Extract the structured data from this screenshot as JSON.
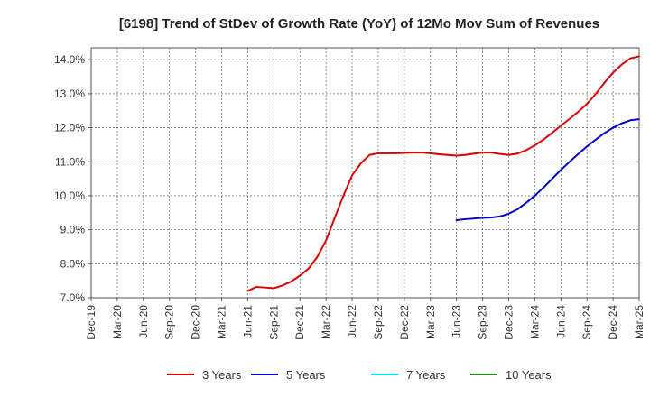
{
  "chart_data": {
    "type": "line",
    "title": "[6198]  Trend of StDev of Growth Rate (YoY) of 12Mo Mov Sum of Revenues",
    "xlabel": "",
    "ylabel": "",
    "ylim": [
      7.0,
      14.35
    ],
    "yticks": [
      "7.0%",
      "8.0%",
      "9.0%",
      "10.0%",
      "11.0%",
      "12.0%",
      "13.0%",
      "14.0%"
    ],
    "ytick_values": [
      7.0,
      8.0,
      9.0,
      10.0,
      11.0,
      12.0,
      13.0,
      14.0
    ],
    "xticks": [
      "Dec-19",
      "Mar-20",
      "Jun-20",
      "Sep-20",
      "Dec-20",
      "Mar-21",
      "Jun-21",
      "Sep-21",
      "Dec-21",
      "Mar-22",
      "Jun-22",
      "Sep-22",
      "Dec-22",
      "Mar-23",
      "Jun-23",
      "Sep-23",
      "Dec-23",
      "Mar-24",
      "Jun-24",
      "Sep-24",
      "Dec-24",
      "Mar-25"
    ],
    "grid": true,
    "legend_position": "bottom",
    "series": [
      {
        "name": "3 Years",
        "color": "#dd0000",
        "start_month_index": 18,
        "values": [
          7.2,
          7.32,
          7.3,
          7.28,
          7.36,
          7.48,
          7.65,
          7.86,
          8.2,
          8.68,
          9.35,
          10.0,
          10.6,
          10.95,
          11.2,
          11.25,
          11.25,
          11.25,
          11.26,
          11.27,
          11.27,
          11.25,
          11.22,
          11.2,
          11.18,
          11.2,
          11.24,
          11.27,
          11.27,
          11.23,
          11.2,
          11.24,
          11.34,
          11.48,
          11.65,
          11.85,
          12.06,
          12.26,
          12.47,
          12.7,
          12.99,
          13.32,
          13.62,
          13.86,
          14.04,
          14.1
        ]
      },
      {
        "name": "5 Years",
        "color": "#0000cc",
        "start_month_index": 42,
        "values": [
          9.28,
          9.31,
          9.33,
          9.35,
          9.36,
          9.39,
          9.47,
          9.6,
          9.79,
          10.0,
          10.24,
          10.5,
          10.76,
          11.0,
          11.23,
          11.45,
          11.65,
          11.84,
          12.0,
          12.13,
          12.22,
          12.25
        ]
      },
      {
        "name": "7 Years",
        "color": "#00e5ee",
        "start_month_index": 0,
        "values": []
      },
      {
        "name": "10 Years",
        "color": "#228b22",
        "start_month_index": 0,
        "values": []
      }
    ]
  }
}
